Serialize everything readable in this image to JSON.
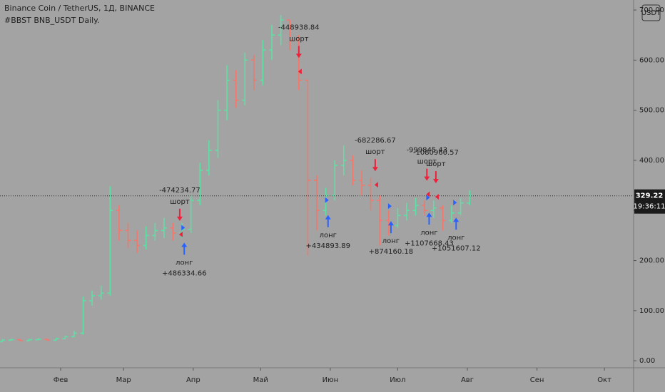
{
  "chart_data": {
    "type": "ohlc",
    "title": "Binance Coin / TetherUS, 1Д, BINANCE",
    "subtitle": "#BBST BNB_USDT Daily.",
    "currency": "USDT",
    "last_price": 329.22,
    "countdown": "19:36:11",
    "up_color": "#5ee0a4",
    "down_color": "#f2786b",
    "short_color": "#f0203c",
    "long_color": "#2962ff",
    "x": [
      1,
      5,
      9,
      13,
      17,
      21,
      25,
      29,
      33,
      37,
      41,
      45,
      49,
      53,
      57,
      61,
      65,
      69,
      73,
      77,
      81,
      85,
      89,
      93,
      97,
      101,
      105,
      109,
      113,
      117,
      121,
      125,
      129,
      133,
      137,
      141,
      145,
      149,
      153,
      157,
      161,
      165,
      169,
      173,
      177,
      181,
      185,
      189,
      193,
      197,
      201,
      205,
      209,
      213
    ],
    "open": [
      37,
      38,
      41,
      42,
      40,
      42,
      43,
      41,
      44,
      48,
      55,
      120,
      130,
      135,
      300,
      260,
      240,
      230,
      250,
      260,
      265,
      255,
      262,
      320,
      380,
      420,
      500,
      560,
      520,
      600,
      560,
      620,
      650,
      680,
      640,
      560,
      360,
      300,
      330,
      390,
      400,
      360,
      350,
      320,
      280,
      270,
      290,
      300,
      310,
      300,
      305,
      280,
      295,
      315
    ],
    "high": [
      40,
      43,
      44,
      43,
      44,
      45,
      44,
      46,
      50,
      60,
      128,
      140,
      150,
      348,
      310,
      275,
      260,
      268,
      275,
      285,
      275,
      275,
      330,
      395,
      440,
      520,
      590,
      580,
      615,
      610,
      640,
      670,
      690,
      680,
      650,
      560,
      370,
      345,
      400,
      430,
      410,
      380,
      365,
      330,
      300,
      305,
      315,
      325,
      320,
      320,
      310,
      310,
      325,
      340
    ],
    "low": [
      36,
      37,
      40,
      39,
      39,
      41,
      40,
      40,
      43,
      47,
      52,
      110,
      122,
      130,
      240,
      225,
      215,
      222,
      240,
      245,
      240,
      245,
      255,
      310,
      370,
      405,
      480,
      505,
      510,
      540,
      550,
      600,
      630,
      620,
      540,
      210,
      260,
      290,
      320,
      370,
      350,
      330,
      300,
      230,
      250,
      265,
      280,
      290,
      290,
      285,
      260,
      275,
      290,
      310
    ],
    "close": [
      38,
      41,
      42,
      40,
      42,
      43,
      41,
      44,
      48,
      55,
      120,
      130,
      135,
      300,
      260,
      240,
      230,
      250,
      260,
      265,
      255,
      262,
      320,
      380,
      420,
      500,
      560,
      520,
      600,
      560,
      620,
      650,
      680,
      640,
      560,
      360,
      300,
      330,
      390,
      400,
      360,
      350,
      320,
      280,
      270,
      290,
      300,
      310,
      300,
      305,
      280,
      295,
      315,
      330
    ],
    "signals": [
      {
        "x": 84,
        "y": 275,
        "kind": "шорт",
        "result": "-474234.77",
        "side": "short"
      },
      {
        "x": 86,
        "y": 240,
        "kind": "лонг",
        "result": "+486334.66",
        "side": "long"
      },
      {
        "x": 137,
        "y": 600,
        "kind": "шорт",
        "result": "-448938.84",
        "side": "short"
      },
      {
        "x": 150,
        "y": 295,
        "kind": "лонг",
        "result": "+434893.89",
        "side": "long"
      },
      {
        "x": 171,
        "y": 374,
        "kind": "шорт",
        "result": "-682286.67",
        "side": "short"
      },
      {
        "x": 178,
        "y": 283,
        "kind": "лонг",
        "result": "+874160.18",
        "side": "long"
      },
      {
        "x": 194,
        "y": 355,
        "kind": "шорт",
        "result": "-999845.43",
        "side": "short"
      },
      {
        "x": 198,
        "y": 350,
        "kind": "шорт",
        "result": "-1080960.57",
        "side": "short"
      },
      {
        "x": 195,
        "y": 300,
        "kind": "лонг",
        "result": "+1107668.43",
        "side": "long"
      },
      {
        "x": 207,
        "y": 290,
        "kind": "лонг",
        "result": "+1051607.12",
        "side": "long"
      }
    ],
    "xlim": [
      4,
      286
    ],
    "xticks": [
      {
        "value": 31,
        "label": "Фев"
      },
      {
        "value": 59,
        "label": "Мар"
      },
      {
        "value": 90,
        "label": "Апр"
      },
      {
        "value": 120,
        "label": "Май"
      },
      {
        "value": 151,
        "label": "Июн"
      },
      {
        "value": 181,
        "label": "Июл"
      },
      {
        "value": 212,
        "label": "Авг"
      },
      {
        "value": 243,
        "label": "Сен"
      },
      {
        "value": 273,
        "label": "Окт"
      }
    ],
    "ylim": [
      -14,
      720
    ],
    "yticks": [
      {
        "value": 0,
        "label": "0.00"
      },
      {
        "value": 100,
        "label": "100.00"
      },
      {
        "value": 200,
        "label": "200.00"
      },
      {
        "value": 300,
        "label": "300.00"
      },
      {
        "value": 400,
        "label": "400.00"
      },
      {
        "value": 500,
        "label": "500.00"
      },
      {
        "value": 600,
        "label": "600.00"
      },
      {
        "value": 700,
        "label": "700.00"
      }
    ]
  }
}
